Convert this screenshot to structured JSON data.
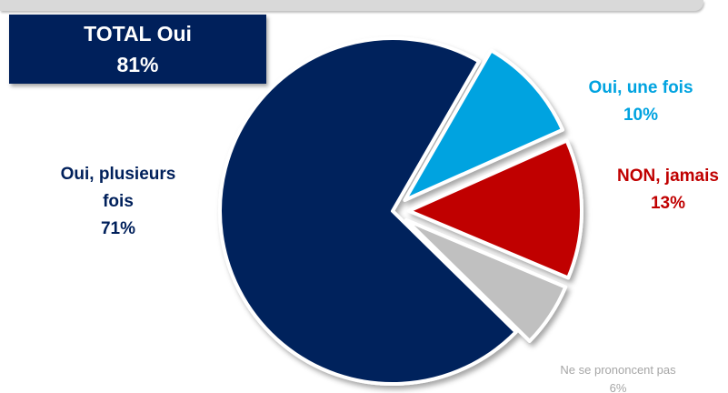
{
  "colors": {
    "navy": "#00205b",
    "light_blue": "#00a3e0",
    "red": "#c00000",
    "gray": "#c0c0c0",
    "nsp_text": "#a6a6a6"
  },
  "total_box": {
    "title": "TOTAL Oui",
    "value": "81%"
  },
  "labels": {
    "plusieurs": {
      "line1": "Oui, plusieurs",
      "line2": "fois",
      "pct": "71%"
    },
    "unefois": {
      "line1": "Oui, une fois",
      "pct": "10%"
    },
    "jamais": {
      "line1": "NON, jamais",
      "pct": "13%"
    },
    "nsp": {
      "line1": "Ne se prononcent pas",
      "pct": "6%"
    }
  },
  "chart_data": {
    "type": "pie",
    "title": "",
    "slices": [
      {
        "label": "Oui, une fois",
        "value": 10,
        "color": "#00a3e0"
      },
      {
        "label": "NON, jamais",
        "value": 13,
        "color": "#c00000"
      },
      {
        "label": "Ne se prononcent pas",
        "value": 6,
        "color": "#c0c0c0"
      },
      {
        "label": "Oui, plusieurs fois",
        "value": 71,
        "color": "#00205b"
      }
    ],
    "annotations": [
      {
        "label": "TOTAL Oui",
        "value": 81
      }
    ]
  }
}
